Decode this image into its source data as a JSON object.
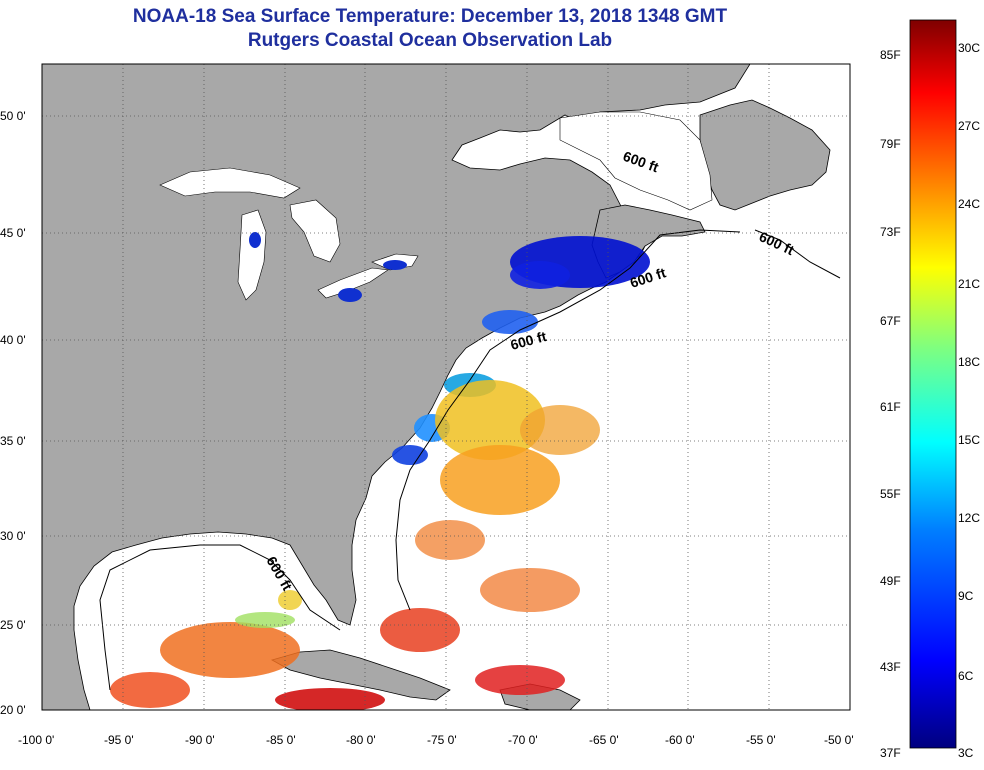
{
  "header": {
    "title": "NOAA-18 Sea Surface Temperature:  December 13, 2018 1348 GMT",
    "subtitle": "Rutgers Coastal Ocean Observation Lab"
  },
  "map": {
    "lon_range": [
      -100,
      -50
    ],
    "lat_range": [
      20,
      52
    ],
    "lon_ticks": [
      "-100 0'",
      "-95 0'",
      "-90 0'",
      "-85 0'",
      "-80 0'",
      "-75 0'",
      "-70 0'",
      "-65 0'",
      "-60 0'",
      "-55 0'",
      "-50 0'"
    ],
    "lat_ticks": [
      "20 0'",
      "25 0'",
      "30 0'",
      "35 0'",
      "40 0'",
      "45 0'",
      "50 0'"
    ],
    "contour_labels": [
      "600 ft",
      "600 ft",
      "600 ft",
      "600 ft",
      "600 ft"
    ],
    "colors": {
      "land": "#a8a8a8",
      "ocean": "#ffffff",
      "grid": "#555555"
    }
  },
  "colorbar": {
    "fahrenheit_labels": [
      "85F",
      "79F",
      "73F",
      "67F",
      "61F",
      "55F",
      "49F",
      "43F",
      "37F"
    ],
    "celsius_labels": [
      "30C",
      "27C",
      "24C",
      "21C",
      "18C",
      "15C",
      "12C",
      "9C",
      "6C",
      "3C"
    ],
    "colors": [
      "#00007f",
      "#0000ff",
      "#007fff",
      "#00ffff",
      "#7fff7f",
      "#ffff00",
      "#ff7f00",
      "#ff0000",
      "#7f0000"
    ]
  }
}
